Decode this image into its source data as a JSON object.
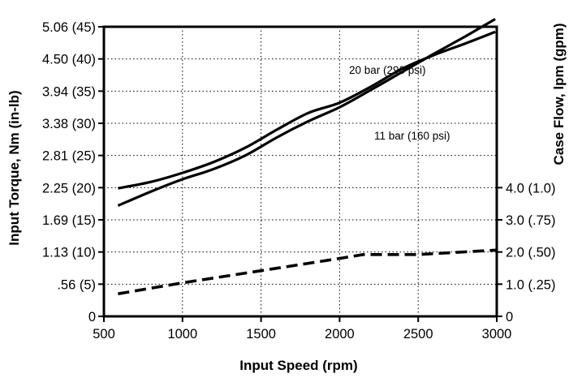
{
  "chart_data": {
    "type": "line",
    "xlabel": "Input Speed (rpm)",
    "ylabel_left": "Input Torque, Nm (in-lb)",
    "ylabel_right": "Case Flow, lpm (gpm)",
    "xlim": [
      500,
      3000
    ],
    "ylim_left": [
      0,
      45
    ],
    "x_ticks": [
      500,
      1000,
      1500,
      2000,
      2500,
      3000
    ],
    "y_left_ticks": [
      {
        "value": 0,
        "label": "0"
      },
      {
        "value": 5,
        "label": ".56 (5)"
      },
      {
        "value": 10,
        "label": "1.13 (10)"
      },
      {
        "value": 15,
        "label": "1.69 (15)"
      },
      {
        "value": 20,
        "label": "2.25 (20)"
      },
      {
        "value": 25,
        "label": "2.81 (25)"
      },
      {
        "value": 30,
        "label": "3.38 (30)"
      },
      {
        "value": 35,
        "label": "3.94 (35)"
      },
      {
        "value": 40,
        "label": "4.50 (40)"
      },
      {
        "value": 45,
        "label": "5.06 (45)"
      }
    ],
    "y_right_ticks": [
      {
        "value": 0,
        "label": "0"
      },
      {
        "value": 5,
        "label": "1.0 (.25)"
      },
      {
        "value": 10,
        "label": "2.0 (.50)"
      },
      {
        "value": 15,
        "label": "3.0 (.75)"
      },
      {
        "value": 20,
        "label": "4.0 (1.0)"
      }
    ],
    "grid": true,
    "series": [
      {
        "name": "20 bar (290 psi)",
        "axis": "left",
        "style": "solid",
        "x": [
          590,
          800,
          1000,
          1200,
          1400,
          1600,
          1800,
          2000,
          2200,
          2400,
          2600,
          2800,
          2990
        ],
        "y": [
          17.2,
          19.4,
          21.3,
          22.9,
          25.0,
          27.8,
          30.3,
          32.5,
          35.2,
          38.0,
          40.8,
          43.5,
          46.2
        ]
      },
      {
        "name": "11 bar (160 psi)",
        "axis": "left",
        "style": "solid",
        "x": [
          590,
          800,
          1000,
          1200,
          1400,
          1600,
          1800,
          2000,
          2200,
          2400,
          2600,
          2800,
          2990
        ],
        "y": [
          19.9,
          20.9,
          22.3,
          24.0,
          26.2,
          29.0,
          31.6,
          33.2,
          35.7,
          38.5,
          40.6,
          42.4,
          44.2
        ]
      },
      {
        "name": "",
        "axis": "right",
        "style": "dashed",
        "x": [
          590,
          1000,
          1500,
          2000,
          2150,
          2500,
          3000
        ],
        "y": [
          3.5,
          5.2,
          7.1,
          9.0,
          9.6,
          9.6,
          10.3
        ]
      }
    ],
    "annotations": [
      "20 bar (290 psi)",
      "11 bar (160 psi)"
    ],
    "colors": {
      "line": "#000000",
      "grid": "#000000",
      "background": "#ffffff"
    }
  }
}
